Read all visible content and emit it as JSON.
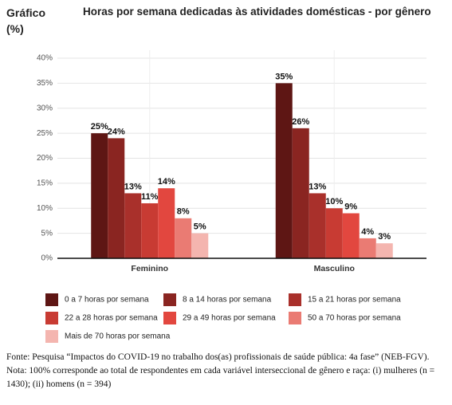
{
  "chart_data": {
    "type": "bar",
    "header_label": "Gráfico (%)",
    "title": "Horas por semana dedicadas às atividades domésticas - por gênero",
    "categories": [
      "Feminino",
      "Masculino"
    ],
    "series": [
      {
        "name": "0 a 7 horas por semana",
        "color": "#5e1614",
        "values": [
          25,
          35
        ],
        "value_labels": [
          "25%",
          "35%"
        ]
      },
      {
        "name": "8 a 14 horas por semana",
        "color": "#8a2521",
        "values": [
          24,
          26
        ],
        "value_labels": [
          "24%",
          "26%"
        ]
      },
      {
        "name": "15 a 21 horas por semana",
        "color": "#a9302b",
        "values": [
          13,
          13
        ],
        "value_labels": [
          "13%",
          "13%"
        ]
      },
      {
        "name": "22 a 28 horas por semana",
        "color": "#c83b33",
        "values": [
          11,
          10
        ],
        "value_labels": [
          "11%",
          "10%"
        ]
      },
      {
        "name": "29 a 49 horas por semana",
        "color": "#e2473f",
        "values": [
          14,
          9
        ],
        "value_labels": [
          "14%",
          "9%"
        ]
      },
      {
        "name": "50 a 70 horas por semana",
        "color": "#ea7b73",
        "values": [
          8,
          4
        ],
        "value_labels": [
          "8%",
          "4%"
        ]
      },
      {
        "name": "Mais de 70 horas por semana",
        "color": "#f4b5af",
        "values": [
          5,
          3
        ],
        "value_labels": [
          "5%",
          "3%"
        ]
      }
    ],
    "ylim": [
      0,
      40
    ],
    "yticks": [
      {
        "value": 0,
        "label": "0%"
      },
      {
        "value": 5,
        "label": "5%"
      },
      {
        "value": 10,
        "label": "10%"
      },
      {
        "value": 15,
        "label": "15%"
      },
      {
        "value": 20,
        "label": "20%"
      },
      {
        "value": 25,
        "label": "25%"
      },
      {
        "value": 30,
        "label": "30%"
      },
      {
        "value": 35,
        "label": "35%"
      },
      {
        "value": 40,
        "label": "40%"
      }
    ],
    "grid": true,
    "footnote": "Fonte: Pesquisa “Impactos do COVID-19 no trabalho dos(as) profissionais de saúde pública: 4a fase” (NEB-FGV). Nota: 100% corresponde ao total de respondentes em cada variável interseccional de gênero e raça: (i) mulheres (n = 1430); (ii) homens (n = 394)"
  }
}
